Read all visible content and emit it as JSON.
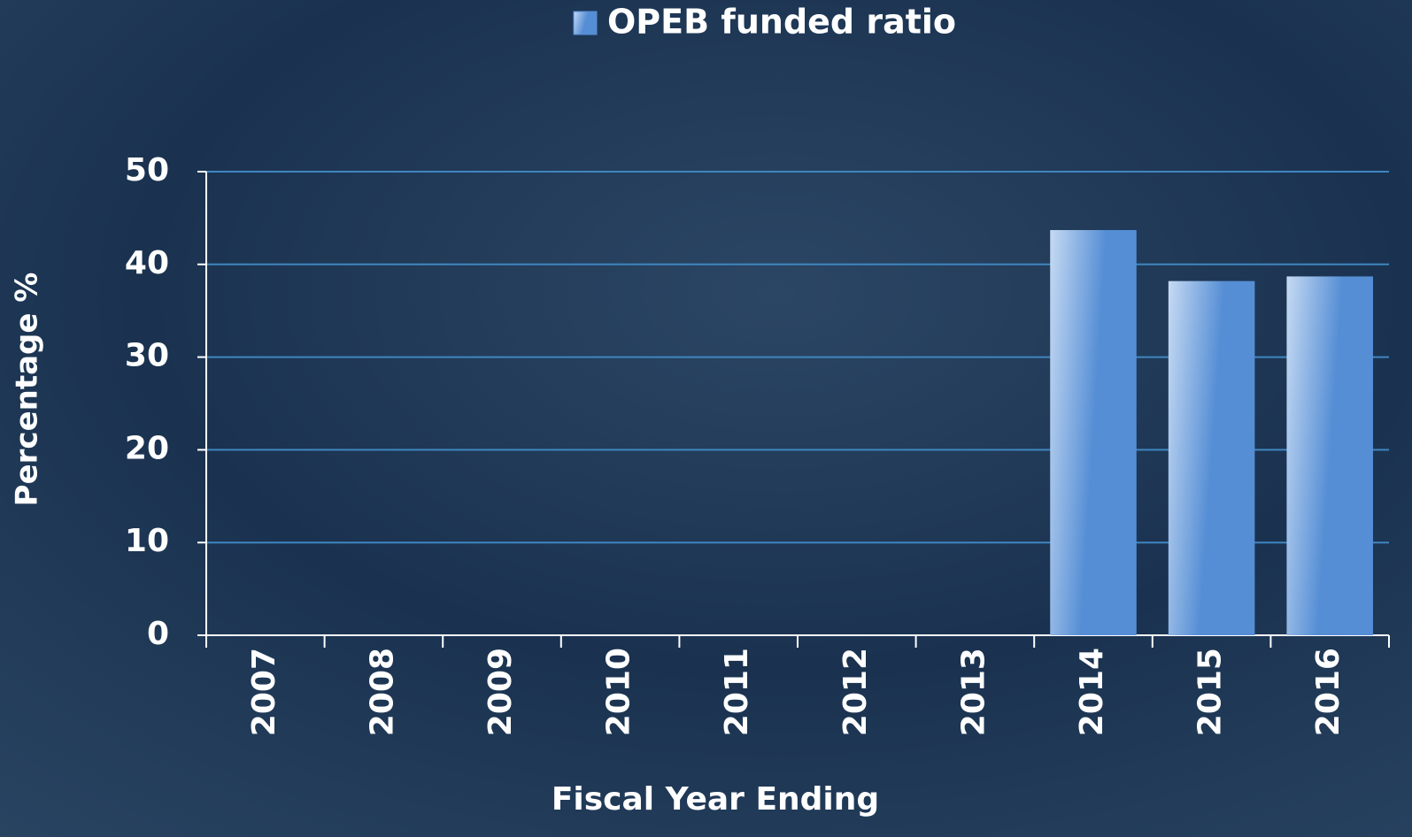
{
  "chart_data": {
    "type": "bar",
    "categories": [
      "2007",
      "2008",
      "2009",
      "2010",
      "2011",
      "2012",
      "2013",
      "2014",
      "2015",
      "2016"
    ],
    "series": [
      {
        "name": "OPEB funded ratio",
        "color": "#558ed5",
        "values": [
          null,
          null,
          null,
          null,
          null,
          null,
          null,
          43.7,
          38.2,
          38.7
        ]
      }
    ],
    "xlabel": "Fiscal Year Ending",
    "ylabel": "Percentage %",
    "ylim": [
      0,
      50
    ],
    "yticks": [
      0,
      10,
      20,
      30,
      40,
      50
    ],
    "grid": true,
    "legend": "top"
  }
}
